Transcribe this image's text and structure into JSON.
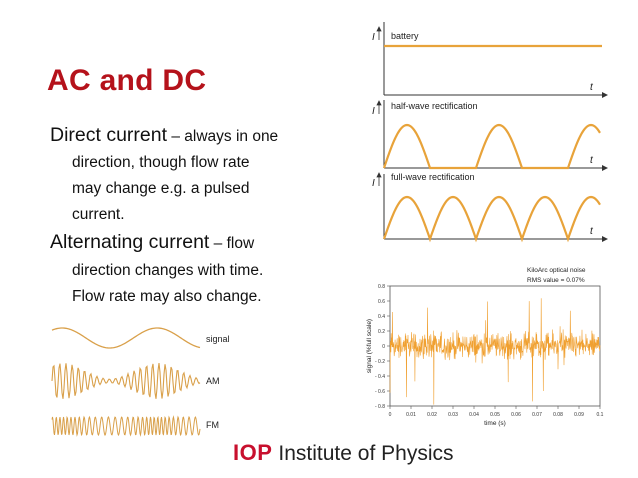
{
  "slide": {
    "title": "AC and DC",
    "dc": {
      "heading": "Direct current",
      "dash_text": " – always in one",
      "lines": [
        "direction, though flow rate",
        "may change e.g. a pulsed",
        "current."
      ]
    },
    "ac": {
      "heading": "Alternating current",
      "dash_text": " – flow",
      "lines": [
        "direction changes with time.",
        "Flow rate may also change."
      ]
    }
  },
  "rectification_panels": {
    "axis_i": "I",
    "axis_t": "t",
    "labels": [
      "battery",
      "half-wave rectification",
      "full-wave rectification"
    ],
    "wave_color": "#e8a33a"
  },
  "modulation_panel": {
    "labels": [
      "signal",
      "AM",
      "FM"
    ],
    "wave_color": "#d9a04a"
  },
  "chart_data": {
    "type": "line",
    "title": "KiloArc optical noise",
    "subtitle": "RMS value = 0.07%",
    "xlabel": "time (s)",
    "ylabel": "signal (%full scale)",
    "xlim": [
      0,
      0.1
    ],
    "ylim": [
      -0.8,
      0.8
    ],
    "x_ticks": [
      "0",
      "0.01",
      "0.02",
      "0.03",
      "0.04",
      "0.05",
      "0.06",
      "0.07",
      "0.08",
      "0.09",
      "0.1"
    ],
    "y_ticks": [
      "0.8",
      "0.6",
      "0.4",
      "0.2",
      "0",
      "- 0.2",
      "- 0.4",
      "- 0.6",
      "- 0.8"
    ],
    "series_color": "#f0a030",
    "grid": false
  },
  "logo": {
    "mark": "IOP",
    "name": "Institute of Physics"
  }
}
